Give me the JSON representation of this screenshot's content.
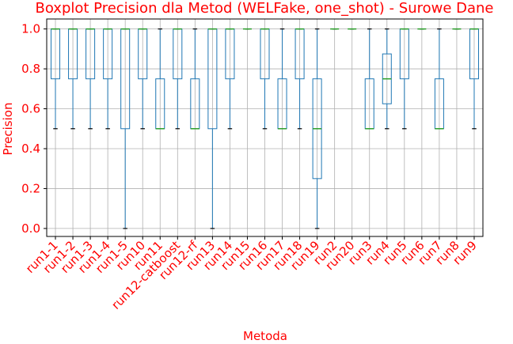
{
  "chart_data": {
    "type": "boxplot",
    "title": "Boxplot Precision dla Metod (WELFake, one_shot) - Surowe Dane",
    "xlabel": "Metoda",
    "ylabel": "Precision",
    "ylim": [
      -0.04,
      1.05
    ],
    "yticks": [
      "0.0",
      "0.2",
      "0.4",
      "0.6",
      "0.8",
      "1.0"
    ],
    "grid": true,
    "colors": {
      "box": "#1f77b4",
      "median": "#2ca02c",
      "caps": "#000000",
      "grid": "#b0b0b0",
      "text": "#ff0000"
    },
    "categories": [
      "run1-1",
      "run1-2",
      "run1-3",
      "run1-4",
      "run1-5",
      "run10",
      "run11",
      "run12-catboost",
      "run12-rf",
      "run13",
      "run14",
      "run15",
      "run16",
      "run17",
      "run18",
      "run19",
      "run2",
      "run20",
      "run3",
      "run4",
      "run5",
      "run6",
      "run7",
      "run8",
      "run9"
    ],
    "boxes": [
      {
        "whislo": 0.5,
        "q1": 0.75,
        "med": 1.0,
        "q3": 1.0,
        "whishi": 1.0
      },
      {
        "whislo": 0.5,
        "q1": 0.75,
        "med": 1.0,
        "q3": 1.0,
        "whishi": 1.0
      },
      {
        "whislo": 0.5,
        "q1": 0.75,
        "med": 1.0,
        "q3": 1.0,
        "whishi": 1.0
      },
      {
        "whislo": 0.5,
        "q1": 0.75,
        "med": 1.0,
        "q3": 1.0,
        "whishi": 1.0
      },
      {
        "whislo": 0.0,
        "q1": 0.5,
        "med": 1.0,
        "q3": 1.0,
        "whishi": 1.0
      },
      {
        "whislo": 0.5,
        "q1": 0.75,
        "med": 1.0,
        "q3": 1.0,
        "whishi": 1.0
      },
      {
        "whislo": 0.5,
        "q1": 0.5,
        "med": 0.5,
        "q3": 0.75,
        "whishi": 1.0
      },
      {
        "whislo": 0.5,
        "q1": 0.75,
        "med": 1.0,
        "q3": 1.0,
        "whishi": 1.0
      },
      {
        "whislo": 0.5,
        "q1": 0.5,
        "med": 0.5,
        "q3": 0.75,
        "whishi": 1.0
      },
      {
        "whislo": 0.0,
        "q1": 0.5,
        "med": 1.0,
        "q3": 1.0,
        "whishi": 1.0
      },
      {
        "whislo": 0.5,
        "q1": 0.75,
        "med": 1.0,
        "q3": 1.0,
        "whishi": 1.0
      },
      {
        "whislo": 1.0,
        "q1": 1.0,
        "med": 1.0,
        "q3": 1.0,
        "whishi": 1.0
      },
      {
        "whislo": 0.5,
        "q1": 0.75,
        "med": 1.0,
        "q3": 1.0,
        "whishi": 1.0
      },
      {
        "whislo": 0.5,
        "q1": 0.5,
        "med": 0.5,
        "q3": 0.75,
        "whishi": 1.0
      },
      {
        "whislo": 0.5,
        "q1": 0.75,
        "med": 1.0,
        "q3": 1.0,
        "whishi": 1.0
      },
      {
        "whislo": 0.0,
        "q1": 0.25,
        "med": 0.5,
        "q3": 0.75,
        "whishi": 1.0
      },
      {
        "whislo": 1.0,
        "q1": 1.0,
        "med": 1.0,
        "q3": 1.0,
        "whishi": 1.0
      },
      {
        "whislo": 1.0,
        "q1": 1.0,
        "med": 1.0,
        "q3": 1.0,
        "whishi": 1.0
      },
      {
        "whislo": 0.5,
        "q1": 0.5,
        "med": 0.5,
        "q3": 0.75,
        "whishi": 1.0
      },
      {
        "whislo": 0.5,
        "q1": 0.625,
        "med": 0.75,
        "q3": 0.875,
        "whishi": 1.0
      },
      {
        "whislo": 0.5,
        "q1": 0.75,
        "med": 1.0,
        "q3": 1.0,
        "whishi": 1.0
      },
      {
        "whislo": 1.0,
        "q1": 1.0,
        "med": 1.0,
        "q3": 1.0,
        "whishi": 1.0
      },
      {
        "whislo": 0.5,
        "q1": 0.5,
        "med": 0.5,
        "q3": 0.75,
        "whishi": 1.0
      },
      {
        "whislo": 1.0,
        "q1": 1.0,
        "med": 1.0,
        "q3": 1.0,
        "whishi": 1.0
      },
      {
        "whislo": 0.5,
        "q1": 0.75,
        "med": 1.0,
        "q3": 1.0,
        "whishi": 1.0
      }
    ]
  }
}
